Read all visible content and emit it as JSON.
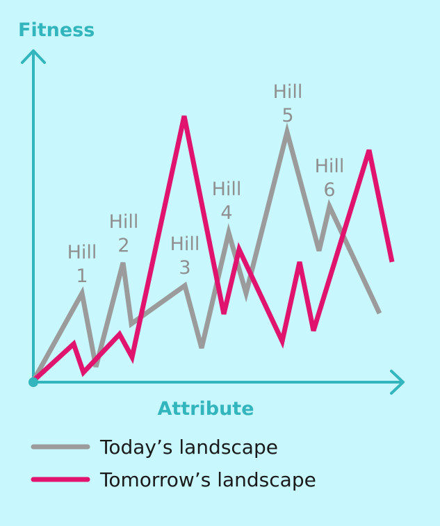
{
  "axes": {
    "y_label": "Fitness",
    "x_label": "Attribute"
  },
  "hills": [
    {
      "word": "Hill",
      "number": "1"
    },
    {
      "word": "Hill",
      "number": "2"
    },
    {
      "word": "Hill",
      "number": "3"
    },
    {
      "word": "Hill",
      "number": "4"
    },
    {
      "word": "Hill",
      "number": "5"
    },
    {
      "word": "Hill",
      "number": "6"
    }
  ],
  "legend": [
    {
      "label": "Today’s landscape",
      "color": "#9b9b9b"
    },
    {
      "label": "Tomorrow’s landscape",
      "color": "#e0146e"
    }
  ],
  "colors": {
    "background": "#c8f7fd",
    "axis": "#33b5bd",
    "today": "#9b9b9b",
    "tomorrow": "#e0146e",
    "hill_label": "#8f8f8f"
  }
}
